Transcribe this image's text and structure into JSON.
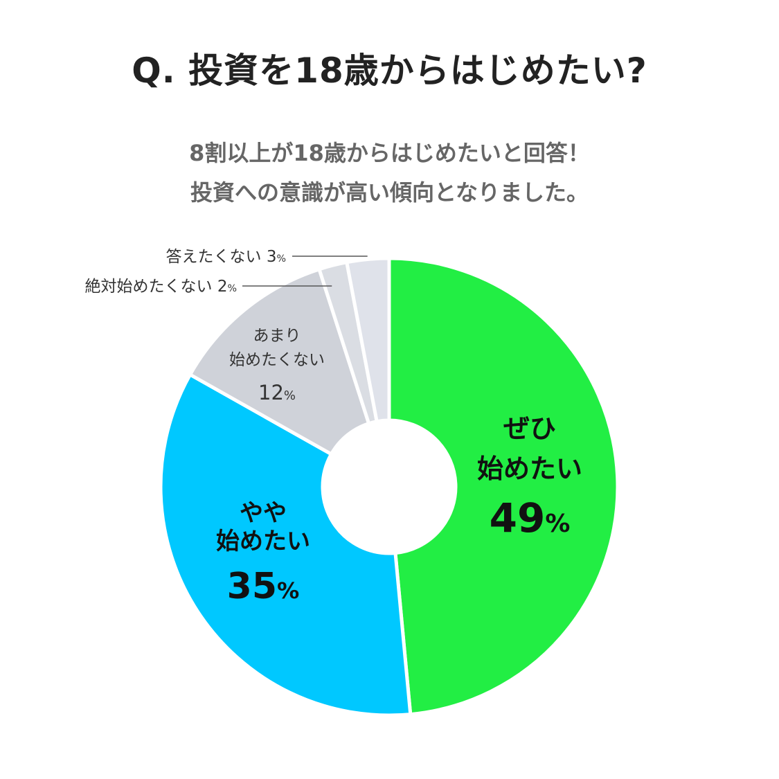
{
  "chart_data": {
    "type": "pie",
    "title": "Q. 投資を18歳からはじめたい?",
    "subtitle_lines": [
      "8割以上が18歳からはじめたいと回答！",
      "投資への意識が高い傾向となりました。"
    ],
    "percent_sign": "%",
    "slices": [
      {
        "label_lines": [
          "ぜひ",
          "始めたい"
        ],
        "value": 49,
        "color": "#22ee44"
      },
      {
        "label_lines": [
          "やや",
          "始めたい"
        ],
        "value": 35,
        "color": "#00c8ff"
      },
      {
        "label_lines": [
          "あまり",
          "始めたくない"
        ],
        "value": 12,
        "color": "#cfd2d9"
      },
      {
        "label_lines": [
          "絶対始めたくない"
        ],
        "value": 2,
        "color": "#dadde3"
      },
      {
        "label_lines": [
          "答えたくない"
        ],
        "value": 3,
        "color": "#dfe2ea"
      }
    ]
  }
}
